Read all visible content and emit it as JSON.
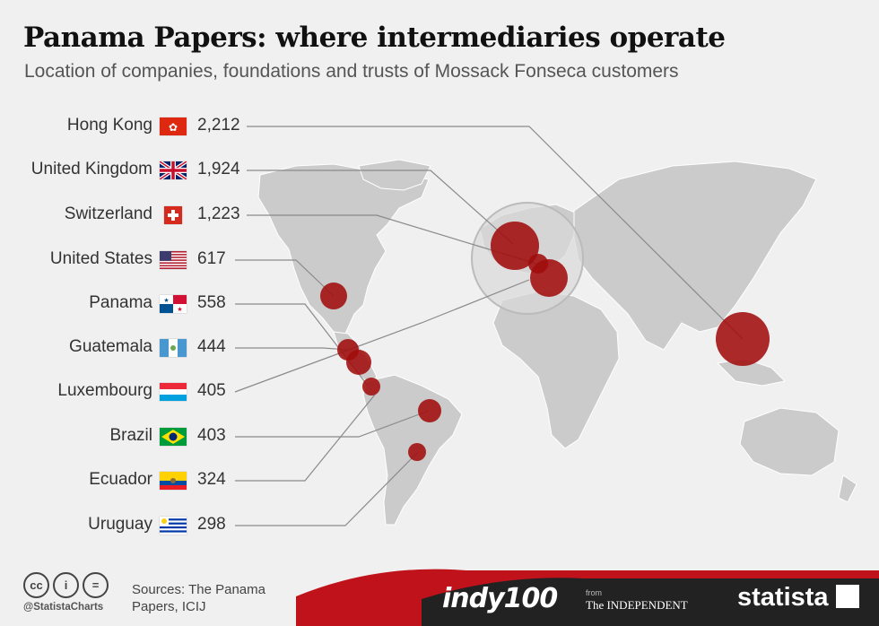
{
  "header": {
    "title": "Panama Papers: where intermediaries operate",
    "subtitle": "Location of companies, foundations and trusts of Mossack Fonseca customers"
  },
  "chart_data": {
    "type": "bar",
    "categories": [
      "Hong Kong",
      "United Kingdom",
      "Switzerland",
      "United States",
      "Panama",
      "Guatemala",
      "Luxembourg",
      "Brazil",
      "Ecuador",
      "Uruguay"
    ],
    "values": [
      2212,
      1924,
      1223,
      617,
      558,
      444,
      405,
      403,
      324,
      298
    ],
    "value_labels": [
      "2,212",
      "1,924",
      "1,223",
      "617",
      "558",
      "444",
      "405",
      "403",
      "324",
      "298"
    ],
    "colors": {
      "bubble": "#a10d0d",
      "land": "#cbcbcb",
      "leader": "#8a8a8a"
    }
  },
  "footer": {
    "sources": "Sources: The Panama Papers, ICIJ",
    "handle": "@StatistaCharts",
    "indy": "indy100",
    "from": "from",
    "independent": "The INDEPENDENT",
    "statista": "statista"
  }
}
